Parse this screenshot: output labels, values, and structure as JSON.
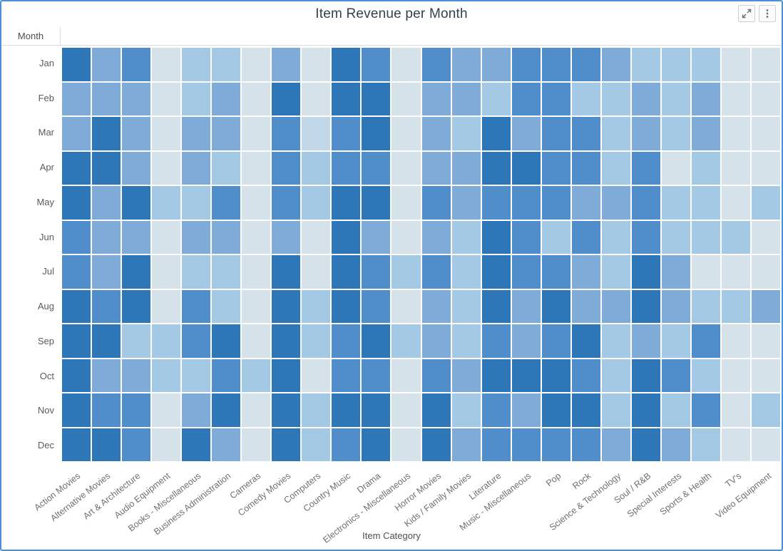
{
  "widget": {
    "controls": {
      "maximize_icon": "expand-icon",
      "menu_icon": "kebab-menu-icon"
    }
  },
  "chart_data": {
    "type": "heatmap",
    "title": "Item Revenue per Month",
    "xlabel": "Item Category",
    "ylabel": "Month",
    "x_categories": [
      "Action Movies",
      "Alternative Movies",
      "Art & Architecture",
      "Audio Equipment",
      "Books - Miscellaneous",
      "Business Administration",
      "Cameras",
      "Comedy Movies",
      "Computers",
      "Country Music",
      "Drama",
      "Electronics - Miscellaneous",
      "Horror Movies",
      "Kids / Family Movies",
      "Literature",
      "Music - Miscellaneous",
      "Pop",
      "Rock",
      "Science & Technology",
      "Soul / R&B",
      "Special Interests",
      "Sports & Health",
      "TV's",
      "Video Equipment"
    ],
    "y_categories": [
      "Jan",
      "Feb",
      "Mar",
      "Apr",
      "May",
      "Jun",
      "Jul",
      "Aug",
      "Sep",
      "Oct",
      "Nov",
      "Dec"
    ],
    "legend": "none",
    "palette": [
      "#d5e2ea",
      "#c2d8e8",
      "#a3c9e4",
      "#7fabd8",
      "#4f8ecb",
      "#2d76b8"
    ],
    "value_range": [
      1,
      6
    ],
    "values": [
      [
        6,
        4,
        5,
        1,
        3,
        3,
        1,
        4,
        1,
        6,
        5,
        1,
        5,
        4,
        4,
        5,
        5,
        5,
        4,
        3,
        3,
        3,
        1,
        1
      ],
      [
        4,
        4,
        4,
        1,
        3,
        4,
        1,
        6,
        1,
        6,
        6,
        1,
        4,
        4,
        3,
        5,
        5,
        3,
        3,
        4,
        3,
        4,
        1,
        1
      ],
      [
        4,
        6,
        4,
        1,
        4,
        4,
        1,
        5,
        2,
        5,
        6,
        1,
        4,
        3,
        6,
        4,
        5,
        5,
        3,
        4,
        3,
        4,
        1,
        1
      ],
      [
        6,
        6,
        4,
        1,
        4,
        3,
        1,
        5,
        3,
        5,
        5,
        1,
        4,
        4,
        6,
        6,
        5,
        5,
        3,
        5,
        1,
        3,
        1,
        1
      ],
      [
        6,
        4,
        6,
        3,
        3,
        5,
        1,
        5,
        3,
        6,
        6,
        1,
        5,
        4,
        5,
        5,
        5,
        4,
        4,
        5,
        3,
        3,
        1,
        3
      ],
      [
        5,
        4,
        4,
        1,
        4,
        4,
        1,
        4,
        1,
        6,
        4,
        1,
        4,
        3,
        6,
        5,
        3,
        5,
        3,
        5,
        3,
        3,
        3,
        1
      ],
      [
        5,
        4,
        6,
        1,
        3,
        3,
        1,
        6,
        1,
        6,
        5,
        3,
        5,
        3,
        6,
        5,
        5,
        4,
        3,
        6,
        4,
        1,
        1,
        1
      ],
      [
        6,
        5,
        6,
        1,
        5,
        3,
        1,
        6,
        3,
        6,
        5,
        1,
        4,
        3,
        6,
        4,
        6,
        4,
        4,
        6,
        4,
        3,
        3,
        4
      ],
      [
        6,
        6,
        3,
        3,
        5,
        6,
        1,
        6,
        3,
        5,
        6,
        3,
        4,
        3,
        5,
        4,
        5,
        6,
        3,
        4,
        3,
        5,
        1,
        1
      ],
      [
        6,
        4,
        4,
        3,
        3,
        5,
        3,
        6,
        1,
        5,
        5,
        1,
        5,
        4,
        6,
        6,
        6,
        5,
        3,
        6,
        5,
        3,
        1,
        1
      ],
      [
        6,
        5,
        5,
        1,
        4,
        6,
        1,
        6,
        3,
        6,
        6,
        1,
        6,
        3,
        5,
        4,
        6,
        6,
        3,
        6,
        3,
        5,
        1,
        3
      ],
      [
        6,
        6,
        5,
        1,
        6,
        4,
        1,
        6,
        3,
        5,
        6,
        1,
        6,
        4,
        5,
        5,
        5,
        5,
        4,
        6,
        4,
        3,
        1,
        1
      ]
    ]
  }
}
